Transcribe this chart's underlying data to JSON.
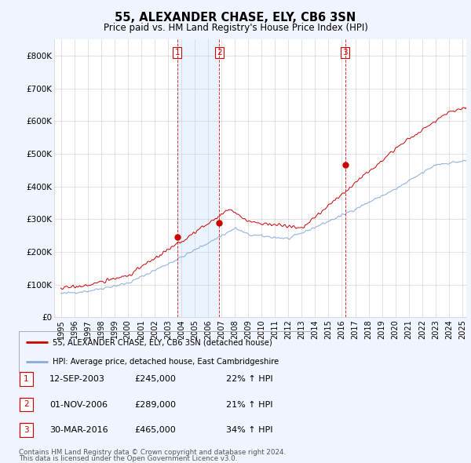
{
  "title": "55, ALEXANDER CHASE, ELY, CB6 3SN",
  "subtitle": "Price paid vs. HM Land Registry's House Price Index (HPI)",
  "ylabel_ticks": [
    "£0",
    "£100K",
    "£200K",
    "£300K",
    "£400K",
    "£500K",
    "£600K",
    "£700K",
    "£800K"
  ],
  "ytick_values": [
    0,
    100000,
    200000,
    300000,
    400000,
    500000,
    600000,
    700000,
    800000
  ],
  "ylim": [
    0,
    850000
  ],
  "xlim_start": 1994.5,
  "xlim_end": 2025.3,
  "transactions": [
    {
      "num": 1,
      "date_str": "12-SEP-2003",
      "year": 2003.7,
      "price": 245000,
      "pct": "22%",
      "direction": "↑"
    },
    {
      "num": 2,
      "date_str": "01-NOV-2006",
      "year": 2006.84,
      "price": 289000,
      "pct": "21%",
      "direction": "↑"
    },
    {
      "num": 3,
      "date_str": "30-MAR-2016",
      "year": 2016.25,
      "price": 465000,
      "pct": "34%",
      "direction": "↑"
    }
  ],
  "legend_line1": "55, ALEXANDER CHASE, ELY, CB6 3SN (detached house)",
  "legend_line2": "HPI: Average price, detached house, East Cambridgeshire",
  "footer1": "Contains HM Land Registry data © Crown copyright and database right 2024.",
  "footer2": "This data is licensed under the Open Government Licence v3.0.",
  "price_line_color": "#cc0000",
  "hpi_line_color": "#88aadd",
  "vline_color": "#cc0000",
  "shade_color": "#ddeeff",
  "bg_color": "#f0f4ff",
  "plot_bg_color": "#ffffff",
  "grid_color": "#cccccc",
  "xtick_years": [
    1995,
    1996,
    1997,
    1998,
    1999,
    2000,
    2001,
    2002,
    2003,
    2004,
    2005,
    2006,
    2007,
    2008,
    2009,
    2010,
    2011,
    2012,
    2013,
    2014,
    2015,
    2016,
    2017,
    2018,
    2019,
    2020,
    2021,
    2022,
    2023,
    2024,
    2025
  ]
}
